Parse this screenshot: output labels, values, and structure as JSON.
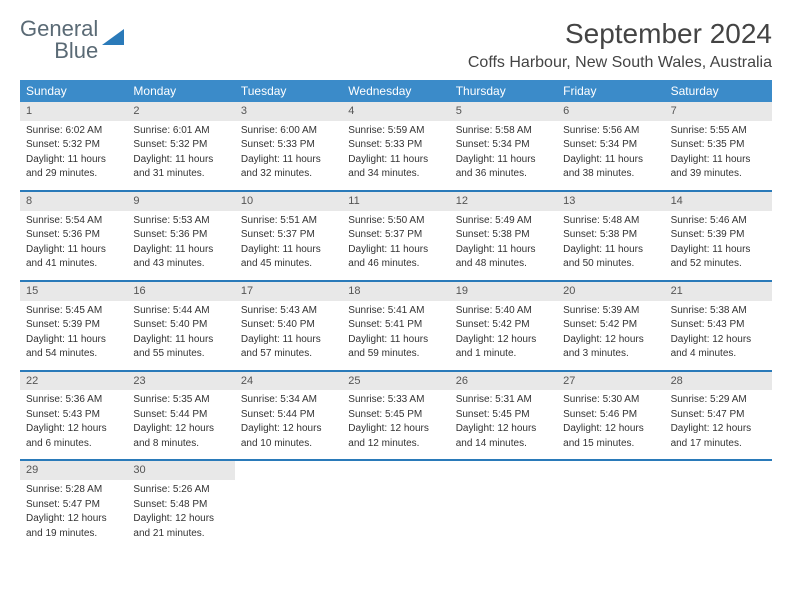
{
  "logo": {
    "line1": "General",
    "line2": "Blue"
  },
  "title": "September 2024",
  "location": "Coffs Harbour, New South Wales, Australia",
  "colors": {
    "header_bg": "#3b8bc9",
    "week_border": "#2a7ab9",
    "daynum_bg": "#e8e8e8",
    "logo_gray": "#5a6a75",
    "logo_blue": "#2a7ab9"
  },
  "weekdays": [
    "Sunday",
    "Monday",
    "Tuesday",
    "Wednesday",
    "Thursday",
    "Friday",
    "Saturday"
  ],
  "weeks": [
    [
      {
        "n": "1",
        "sr": "Sunrise: 6:02 AM",
        "ss": "Sunset: 5:32 PM",
        "d1": "Daylight: 11 hours",
        "d2": "and 29 minutes."
      },
      {
        "n": "2",
        "sr": "Sunrise: 6:01 AM",
        "ss": "Sunset: 5:32 PM",
        "d1": "Daylight: 11 hours",
        "d2": "and 31 minutes."
      },
      {
        "n": "3",
        "sr": "Sunrise: 6:00 AM",
        "ss": "Sunset: 5:33 PM",
        "d1": "Daylight: 11 hours",
        "d2": "and 32 minutes."
      },
      {
        "n": "4",
        "sr": "Sunrise: 5:59 AM",
        "ss": "Sunset: 5:33 PM",
        "d1": "Daylight: 11 hours",
        "d2": "and 34 minutes."
      },
      {
        "n": "5",
        "sr": "Sunrise: 5:58 AM",
        "ss": "Sunset: 5:34 PM",
        "d1": "Daylight: 11 hours",
        "d2": "and 36 minutes."
      },
      {
        "n": "6",
        "sr": "Sunrise: 5:56 AM",
        "ss": "Sunset: 5:34 PM",
        "d1": "Daylight: 11 hours",
        "d2": "and 38 minutes."
      },
      {
        "n": "7",
        "sr": "Sunrise: 5:55 AM",
        "ss": "Sunset: 5:35 PM",
        "d1": "Daylight: 11 hours",
        "d2": "and 39 minutes."
      }
    ],
    [
      {
        "n": "8",
        "sr": "Sunrise: 5:54 AM",
        "ss": "Sunset: 5:36 PM",
        "d1": "Daylight: 11 hours",
        "d2": "and 41 minutes."
      },
      {
        "n": "9",
        "sr": "Sunrise: 5:53 AM",
        "ss": "Sunset: 5:36 PM",
        "d1": "Daylight: 11 hours",
        "d2": "and 43 minutes."
      },
      {
        "n": "10",
        "sr": "Sunrise: 5:51 AM",
        "ss": "Sunset: 5:37 PM",
        "d1": "Daylight: 11 hours",
        "d2": "and 45 minutes."
      },
      {
        "n": "11",
        "sr": "Sunrise: 5:50 AM",
        "ss": "Sunset: 5:37 PM",
        "d1": "Daylight: 11 hours",
        "d2": "and 46 minutes."
      },
      {
        "n": "12",
        "sr": "Sunrise: 5:49 AM",
        "ss": "Sunset: 5:38 PM",
        "d1": "Daylight: 11 hours",
        "d2": "and 48 minutes."
      },
      {
        "n": "13",
        "sr": "Sunrise: 5:48 AM",
        "ss": "Sunset: 5:38 PM",
        "d1": "Daylight: 11 hours",
        "d2": "and 50 minutes."
      },
      {
        "n": "14",
        "sr": "Sunrise: 5:46 AM",
        "ss": "Sunset: 5:39 PM",
        "d1": "Daylight: 11 hours",
        "d2": "and 52 minutes."
      }
    ],
    [
      {
        "n": "15",
        "sr": "Sunrise: 5:45 AM",
        "ss": "Sunset: 5:39 PM",
        "d1": "Daylight: 11 hours",
        "d2": "and 54 minutes."
      },
      {
        "n": "16",
        "sr": "Sunrise: 5:44 AM",
        "ss": "Sunset: 5:40 PM",
        "d1": "Daylight: 11 hours",
        "d2": "and 55 minutes."
      },
      {
        "n": "17",
        "sr": "Sunrise: 5:43 AM",
        "ss": "Sunset: 5:40 PM",
        "d1": "Daylight: 11 hours",
        "d2": "and 57 minutes."
      },
      {
        "n": "18",
        "sr": "Sunrise: 5:41 AM",
        "ss": "Sunset: 5:41 PM",
        "d1": "Daylight: 11 hours",
        "d2": "and 59 minutes."
      },
      {
        "n": "19",
        "sr": "Sunrise: 5:40 AM",
        "ss": "Sunset: 5:42 PM",
        "d1": "Daylight: 12 hours",
        "d2": "and 1 minute."
      },
      {
        "n": "20",
        "sr": "Sunrise: 5:39 AM",
        "ss": "Sunset: 5:42 PM",
        "d1": "Daylight: 12 hours",
        "d2": "and 3 minutes."
      },
      {
        "n": "21",
        "sr": "Sunrise: 5:38 AM",
        "ss": "Sunset: 5:43 PM",
        "d1": "Daylight: 12 hours",
        "d2": "and 4 minutes."
      }
    ],
    [
      {
        "n": "22",
        "sr": "Sunrise: 5:36 AM",
        "ss": "Sunset: 5:43 PM",
        "d1": "Daylight: 12 hours",
        "d2": "and 6 minutes."
      },
      {
        "n": "23",
        "sr": "Sunrise: 5:35 AM",
        "ss": "Sunset: 5:44 PM",
        "d1": "Daylight: 12 hours",
        "d2": "and 8 minutes."
      },
      {
        "n": "24",
        "sr": "Sunrise: 5:34 AM",
        "ss": "Sunset: 5:44 PM",
        "d1": "Daylight: 12 hours",
        "d2": "and 10 minutes."
      },
      {
        "n": "25",
        "sr": "Sunrise: 5:33 AM",
        "ss": "Sunset: 5:45 PM",
        "d1": "Daylight: 12 hours",
        "d2": "and 12 minutes."
      },
      {
        "n": "26",
        "sr": "Sunrise: 5:31 AM",
        "ss": "Sunset: 5:45 PM",
        "d1": "Daylight: 12 hours",
        "d2": "and 14 minutes."
      },
      {
        "n": "27",
        "sr": "Sunrise: 5:30 AM",
        "ss": "Sunset: 5:46 PM",
        "d1": "Daylight: 12 hours",
        "d2": "and 15 minutes."
      },
      {
        "n": "28",
        "sr": "Sunrise: 5:29 AM",
        "ss": "Sunset: 5:47 PM",
        "d1": "Daylight: 12 hours",
        "d2": "and 17 minutes."
      }
    ],
    [
      {
        "n": "29",
        "sr": "Sunrise: 5:28 AM",
        "ss": "Sunset: 5:47 PM",
        "d1": "Daylight: 12 hours",
        "d2": "and 19 minutes."
      },
      {
        "n": "30",
        "sr": "Sunrise: 5:26 AM",
        "ss": "Sunset: 5:48 PM",
        "d1": "Daylight: 12 hours",
        "d2": "and 21 minutes."
      },
      null,
      null,
      null,
      null,
      null
    ]
  ]
}
